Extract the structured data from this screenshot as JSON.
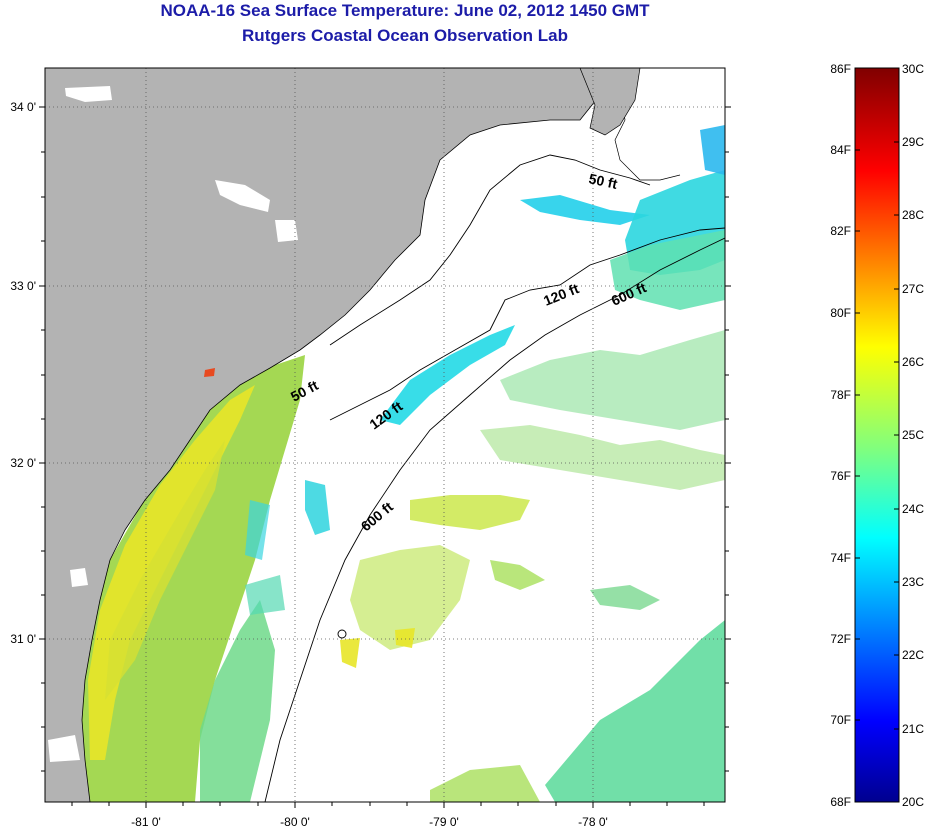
{
  "title": {
    "line1": "NOAA-16 Sea Surface Temperature:  June 02, 2012 1450 GMT",
    "line2": "Rutgers Coastal Ocean Observation Lab"
  },
  "map": {
    "lat_labels": [
      "34 0'",
      "33 0'",
      "32 0'",
      "31 0'"
    ],
    "lon_labels": [
      "-81 0'",
      "-80 0'",
      "-79 0'",
      "-78 0'"
    ],
    "contour_labels": [
      "50 ft",
      "120 ft",
      "600 ft",
      "50 ft",
      "120 ft",
      "600 ft"
    ],
    "colors": {
      "land": "#b3b3b3",
      "ocean_nodata": "#ffffff",
      "contour": "#000000"
    }
  },
  "colorbar": {
    "fahrenheit_labels": [
      "86F",
      "84F",
      "82F",
      "80F",
      "78F",
      "76F",
      "74F",
      "72F",
      "70F",
      "68F"
    ],
    "celsius_labels": [
      "30C",
      "29C",
      "28C",
      "27C",
      "26C",
      "25C",
      "24C",
      "23C",
      "22C",
      "21C",
      "20C"
    ],
    "range_f": [
      68,
      86
    ],
    "range_c": [
      20,
      30
    ],
    "colormap": "jet"
  }
}
